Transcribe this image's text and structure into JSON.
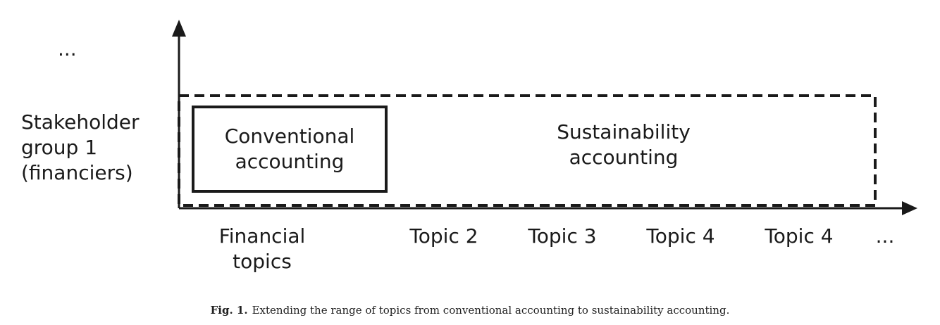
{
  "y_axis": {
    "ellipsis": "...",
    "label_lines": [
      "Stakeholder",
      "group 1",
      "(financiers)"
    ]
  },
  "boxes": {
    "conventional_lines": [
      "Conventional",
      "accounting"
    ],
    "sustainability_lines": [
      "Sustainability",
      "accounting"
    ]
  },
  "x_axis": {
    "ticks": [
      {
        "lines": [
          "Financial",
          "topics"
        ]
      },
      {
        "lines": [
          "Topic 2"
        ]
      },
      {
        "lines": [
          "Topic 3"
        ]
      },
      {
        "lines": [
          "Topic 4"
        ]
      },
      {
        "lines": [
          "Topic 4"
        ]
      },
      {
        "lines": [
          "..."
        ]
      }
    ]
  },
  "caption": {
    "label": "Fig. 1.",
    "text": "Extending the range of topics from conventional accounting to sustainability accounting."
  }
}
